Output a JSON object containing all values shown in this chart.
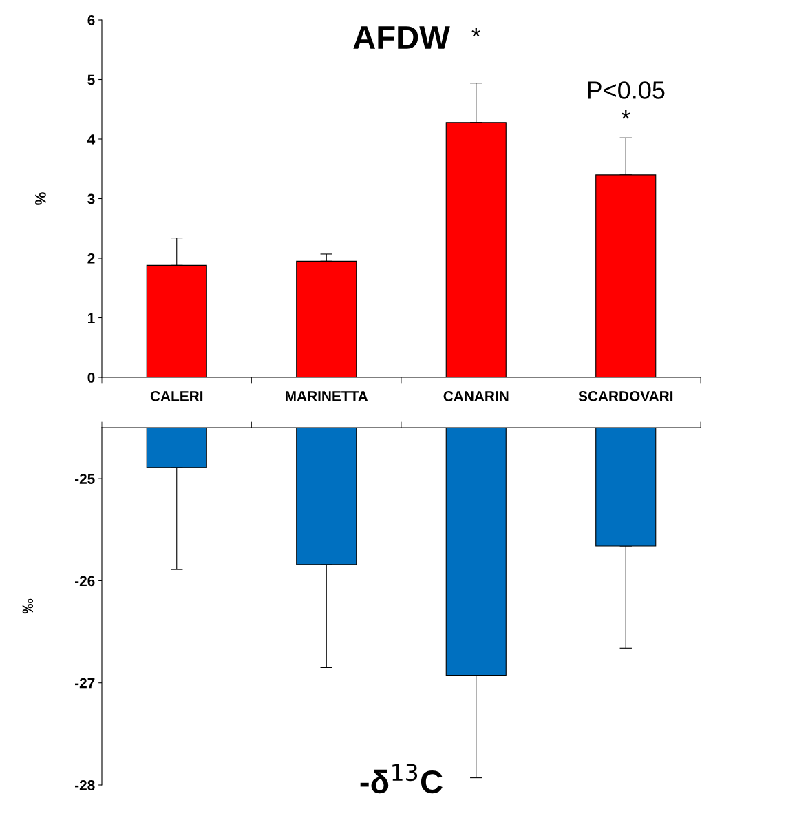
{
  "chart_data": [
    {
      "type": "bar",
      "title": "AFDW",
      "ylabel": "%",
      "categories": [
        "CALERI",
        "MARINETTA",
        "CANARIN",
        "SCARDOVARI"
      ],
      "color": "#ff0000",
      "values": [
        1.88,
        1.95,
        4.28,
        3.4
      ],
      "errors": [
        [
          1.88,
          2.34
        ],
        [
          1.95,
          2.07
        ],
        [
          4.28,
          4.94
        ],
        [
          3.4,
          4.02
        ]
      ],
      "ylim": [
        0,
        6
      ],
      "yticks": [
        0,
        1,
        2,
        3,
        4,
        5,
        6
      ],
      "grid": false,
      "annotations": [
        "*",
        "*",
        "P<0.05"
      ]
    },
    {
      "type": "bar",
      "xlabel": "-δ$^{13}$C",
      "ylabel": "‰",
      "categories": [
        null,
        null,
        null,
        null
      ],
      "color": "#0070c0",
      "values": [
        -24.89,
        -25.84,
        -26.93,
        -25.66
      ],
      "errors": [
        [
          -25.89,
          -24.89
        ],
        [
          -26.85,
          -25.84
        ],
        [
          -27.93,
          -26.93
        ],
        [
          -26.66,
          -25.66
        ]
      ],
      "ylim": [
        -28,
        -24.5
      ],
      "yticks": [
        -28,
        -27,
        -26,
        -25
      ],
      "grid": false,
      "tick_labels": "y"
    }
  ]
}
